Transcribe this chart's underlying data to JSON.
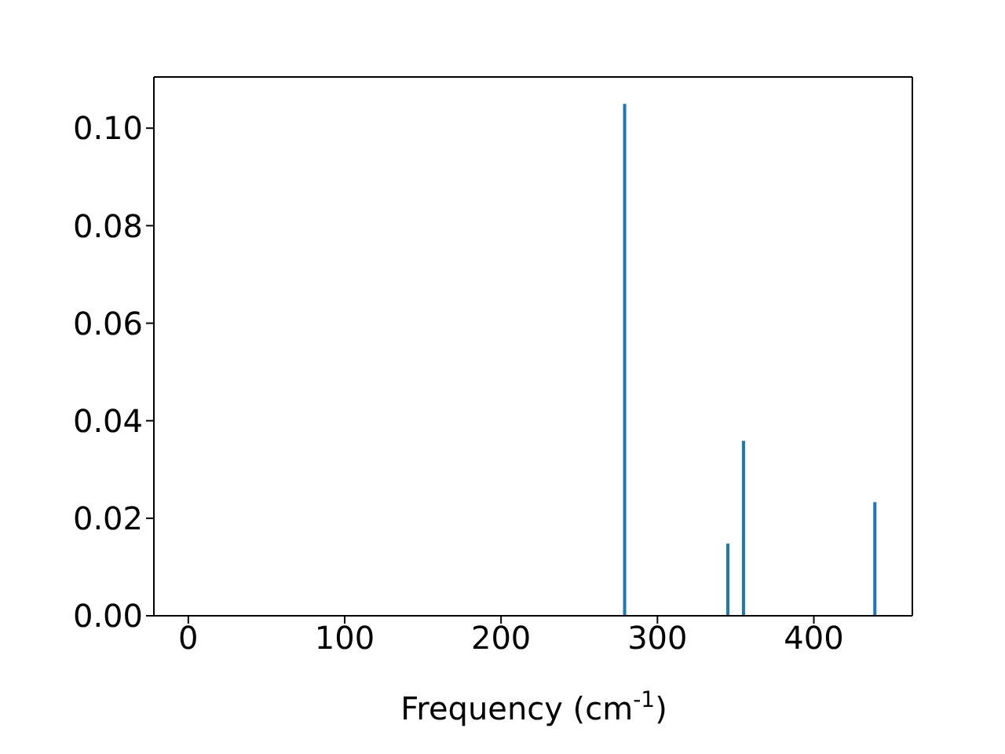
{
  "chart_data": {
    "type": "bar",
    "xlabel": "Frequency (cm$^{-1}$)",
    "x": [
      279,
      345,
      355,
      439
    ],
    "values": [
      0.105,
      0.0148,
      0.0359,
      0.0233
    ],
    "color": "#1f77b4",
    "xlim": [
      -22,
      463
    ],
    "xticks": [
      0,
      100,
      200,
      300,
      400
    ],
    "ylim": [
      0,
      0.1105
    ],
    "yticks": [
      {
        "value": 0,
        "label": "0.00"
      },
      {
        "value": 0.02,
        "label": "0.02"
      },
      {
        "value": 0.04,
        "label": "0.04"
      },
      {
        "value": 0.06,
        "label": "0.06"
      },
      {
        "value": 0.08,
        "label": "0.08"
      },
      {
        "value": 0.1,
        "label": "0.10"
      }
    ],
    "grid": false
  }
}
